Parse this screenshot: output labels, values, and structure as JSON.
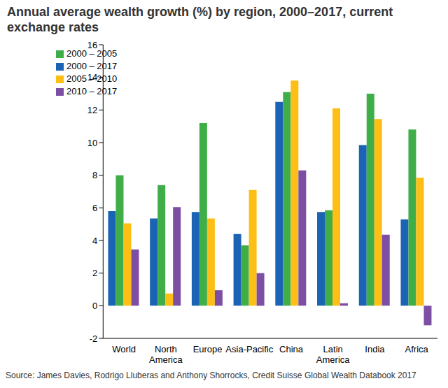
{
  "chart_data": {
    "type": "bar",
    "title": "Annual average wealth growth (%) by region, 2000–2017, current exchange rates",
    "source": "Source: James Davies, Rodrigo Lluberas and Anthony Shorrocks, Credit Suisse Global Wealth Databook 2017",
    "categories": [
      "World",
      "North America",
      "Europe",
      "Asia-Pacific",
      "China",
      "Latin America",
      "India",
      "Africa"
    ],
    "series": [
      {
        "name": "2000 – 2017",
        "color": "#1b63b5",
        "values": [
          5.8,
          5.35,
          5.75,
          4.4,
          12.5,
          5.75,
          9.85,
          5.3
        ]
      },
      {
        "name": "2000 – 2005",
        "color": "#3fae49",
        "values": [
          8.0,
          7.4,
          11.2,
          3.7,
          13.1,
          5.85,
          13.0,
          10.8
        ]
      },
      {
        "name": "2005 – 2010",
        "color": "#fdbf16",
        "values": [
          5.05,
          0.75,
          5.35,
          7.1,
          13.8,
          12.1,
          11.45,
          7.85
        ]
      },
      {
        "name": "2010 – 2017",
        "color": "#7d4fa4",
        "values": [
          3.45,
          6.05,
          0.95,
          2.0,
          8.3,
          0.15,
          4.35,
          -1.2
        ]
      }
    ],
    "ylim": [
      -2,
      16
    ],
    "yticks": [
      -2,
      0,
      2,
      4,
      6,
      8,
      10,
      12,
      14,
      16
    ],
    "grid": false,
    "legend": "upper left"
  }
}
